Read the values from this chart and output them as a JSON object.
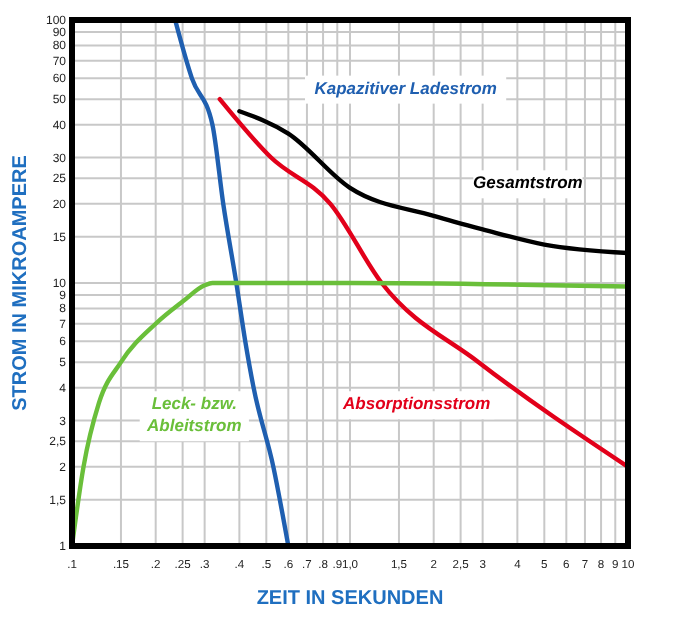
{
  "chart_data": {
    "type": "line",
    "xlabel": "ZEIT IN SEKUNDEN",
    "ylabel": "STROM IN MIKROAMPERE",
    "log": "xy",
    "grid": true,
    "legend": false,
    "marker": "none",
    "line_style": "solid",
    "xlim": [
      0.1,
      10
    ],
    "ylim": [
      1,
      100
    ],
    "xticks": [
      {
        "value": 0.1,
        "label": ".1"
      },
      {
        "value": 0.15,
        "label": ".15"
      },
      {
        "value": 0.2,
        "label": ".2"
      },
      {
        "value": 0.25,
        "label": ".25"
      },
      {
        "value": 0.3,
        "label": ".3"
      },
      {
        "value": 0.4,
        "label": ".4"
      },
      {
        "value": 0.5,
        "label": ".5"
      },
      {
        "value": 0.6,
        "label": ".6"
      },
      {
        "value": 0.7,
        "label": ".7"
      },
      {
        "value": 0.8,
        "label": ".8"
      },
      {
        "value": 0.9,
        "label": ".9"
      },
      {
        "value": 1,
        "label": "1,0"
      },
      {
        "value": 1.5,
        "label": "1,5"
      },
      2,
      {
        "value": 2.5,
        "label": "2,5"
      },
      3,
      4,
      5,
      6,
      7,
      8,
      9,
      10
    ],
    "yticks": [
      100,
      90,
      80,
      70,
      60,
      50,
      40,
      30,
      25,
      20,
      15,
      10,
      9,
      8,
      7,
      6,
      5,
      4,
      3,
      {
        "value": 2.5,
        "label": "2,5"
      },
      2,
      {
        "value": 1.5,
        "label": "1,5"
      },
      1
    ],
    "series": [
      {
        "name": "Kapazitiver Ladestrom",
        "color": "#1f5fb0",
        "x": [
          0.235,
          0.27,
          0.32,
          0.35,
          0.39,
          0.42,
          0.45,
          0.53,
          0.6
        ],
        "values": [
          100,
          60,
          40,
          20,
          10,
          6,
          4,
          2,
          1
        ]
      },
      {
        "name": "Gesamtstrom",
        "color": "#000000",
        "x": [
          0.4,
          0.6,
          1,
          2,
          3,
          5,
          10
        ],
        "values": [
          45,
          37,
          23,
          18,
          16,
          14,
          13
        ]
      },
      {
        "name": "Absorptionsstrom",
        "color": "#e2001a",
        "x": [
          0.34,
          0.52,
          0.85,
          1.3,
          2.9,
          10
        ],
        "values": [
          50,
          30,
          20,
          10,
          5,
          2
        ]
      },
      {
        "name": "Leck- bzw. Ableitstrom",
        "color": "#6abf3a",
        "x": [
          0.1,
          0.11,
          0.125,
          0.15,
          0.2,
          0.25,
          0.3,
          0.32,
          1,
          10
        ],
        "values": [
          1,
          2,
          3.5,
          5,
          7,
          8.5,
          9.8,
          10,
          10,
          9.7
        ]
      }
    ]
  }
}
